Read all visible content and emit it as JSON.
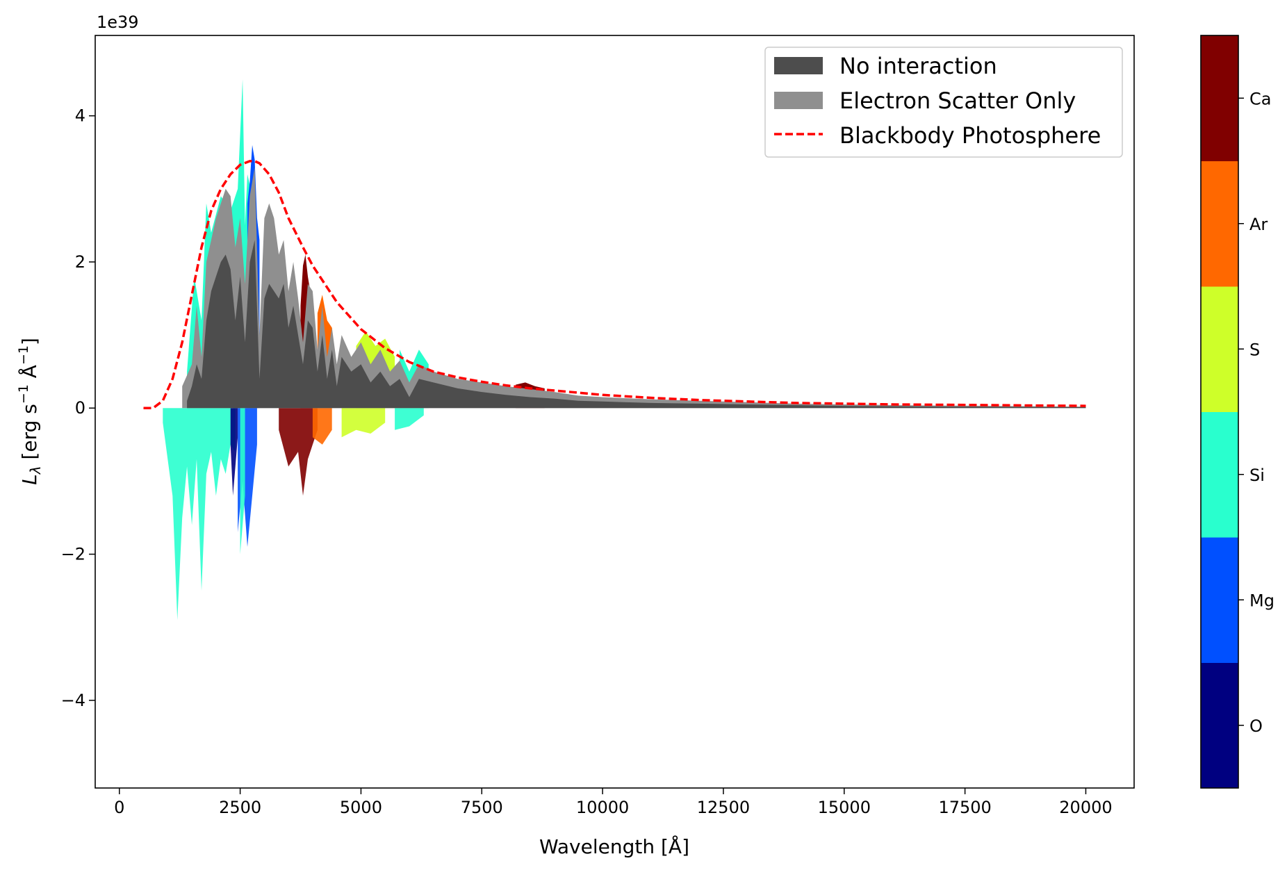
{
  "chart_data": {
    "type": "area",
    "title": "",
    "xlabel": "Wavelength [Å]",
    "ylabel": "L_λ [erg s⁻¹ Å⁻¹]",
    "ylabel_parts": {
      "symbol": "L",
      "subscript": "λ",
      "units": " [erg s",
      "exp1": "−1",
      "units2": " Å",
      "exp2": "−1",
      "close": "]"
    },
    "y_offset_label": "1e39",
    "y_scale": 1e+39,
    "xlim": [
      -500,
      21000
    ],
    "ylim": [
      -5.2,
      5.1
    ],
    "x_ticks": [
      0,
      2500,
      5000,
      7500,
      10000,
      12500,
      15000,
      17500,
      20000
    ],
    "x_tick_labels": [
      "0",
      "2500",
      "5000",
      "7500",
      "10000",
      "12500",
      "15000",
      "17500",
      "20000"
    ],
    "y_ticks": [
      -4,
      -2,
      0,
      2,
      4
    ],
    "y_tick_labels": [
      "−4",
      "−2",
      "0",
      "2",
      "4"
    ],
    "grid": false,
    "legend": {
      "placement": "top-right",
      "entries": [
        {
          "label": "No interaction",
          "style": "patch",
          "color": "#4d4d4d"
        },
        {
          "label": "Electron Scatter Only",
          "style": "patch",
          "color": "#8f8f8f"
        },
        {
          "label": "Blackbody Photosphere",
          "style": "dashed-line",
          "color": "#ff0000"
        }
      ]
    },
    "colorbar": {
      "labels": [
        "O",
        "Mg",
        "Si",
        "S",
        "Ar",
        "Ca"
      ],
      "colors": [
        "#000080",
        "#0050ff",
        "#29ffce",
        "#ceff29",
        "#ff6800",
        "#800000"
      ]
    },
    "blackbody": {
      "x": [
        500,
        700,
        900,
        1100,
        1300,
        1500,
        1700,
        1900,
        2100,
        2300,
        2500,
        2700,
        2800,
        2900,
        3100,
        3300,
        3500,
        3800,
        4000,
        4500,
        5000,
        5500,
        6000,
        6500,
        7000,
        7500,
        8000,
        8500,
        9000,
        10000,
        11000,
        12000,
        13000,
        14000,
        15000,
        16000,
        17000,
        18000,
        19000,
        20000
      ],
      "y": [
        0.0,
        0.0,
        0.1,
        0.4,
        0.9,
        1.55,
        2.2,
        2.7,
        3.0,
        3.2,
        3.33,
        3.38,
        3.38,
        3.35,
        3.2,
        2.95,
        2.6,
        2.2,
        1.95,
        1.45,
        1.08,
        0.82,
        0.63,
        0.5,
        0.42,
        0.36,
        0.31,
        0.27,
        0.24,
        0.18,
        0.14,
        0.11,
        0.09,
        0.07,
        0.06,
        0.05,
        0.045,
        0.04,
        0.035,
        0.03
      ]
    },
    "series": [
      {
        "name": "Electron Scatter Only",
        "color": "#8f8f8f",
        "x": [
          1300,
          1500,
          1600,
          1700,
          1800,
          1900,
          2000,
          2100,
          2200,
          2300,
          2400,
          2500,
          2600,
          2700,
          2800,
          2900,
          3000,
          3100,
          3200,
          3300,
          3400,
          3500,
          3600,
          3700,
          3800,
          3900,
          4000,
          4100,
          4200,
          4300,
          4400,
          4500,
          4600,
          4800,
          5000,
          5200,
          5400,
          5600,
          5800,
          6000,
          6200,
          6500,
          7000,
          7500,
          8000,
          8500,
          9000,
          9500,
          10000,
          11000,
          12000,
          13000,
          14000,
          15000,
          16000,
          17000,
          18000,
          19000,
          20000
        ],
        "y": [
          0.3,
          0.6,
          1.4,
          0.7,
          2.0,
          2.3,
          2.6,
          2.8,
          3.0,
          2.9,
          2.2,
          2.6,
          1.7,
          2.9,
          3.3,
          1.0,
          2.6,
          2.8,
          2.6,
          2.1,
          2.3,
          1.6,
          2.0,
          1.5,
          0.9,
          1.7,
          1.6,
          0.8,
          1.4,
          0.7,
          1.1,
          0.6,
          1.0,
          0.7,
          0.9,
          0.6,
          0.8,
          0.5,
          0.65,
          0.35,
          0.6,
          0.5,
          0.4,
          0.35,
          0.3,
          0.26,
          0.22,
          0.17,
          0.15,
          0.12,
          0.1,
          0.08,
          0.06,
          0.05,
          0.04,
          0.035,
          0.03,
          0.025,
          0.02
        ]
      },
      {
        "name": "No interaction",
        "color": "#4d4d4d",
        "x": [
          1400,
          1500,
          1600,
          1700,
          1800,
          1900,
          2000,
          2100,
          2200,
          2300,
          2400,
          2500,
          2600,
          2700,
          2800,
          2900,
          3000,
          3100,
          3200,
          3300,
          3400,
          3500,
          3600,
          3700,
          3800,
          3900,
          4000,
          4100,
          4200,
          4300,
          4400,
          4500,
          4600,
          4800,
          5000,
          5200,
          5400,
          5600,
          5800,
          6000,
          6200,
          6500,
          7000,
          7500,
          8000,
          8500,
          9000,
          9500,
          10000,
          11000,
          12000,
          13000,
          14000,
          15000,
          16000,
          17000,
          18000,
          19000,
          20000
        ],
        "y": [
          0.1,
          0.3,
          0.6,
          0.4,
          1.2,
          1.6,
          1.8,
          2.0,
          2.1,
          1.9,
          1.2,
          1.8,
          0.9,
          2.0,
          2.3,
          0.4,
          1.5,
          1.7,
          1.6,
          1.5,
          1.7,
          1.1,
          1.4,
          1.0,
          0.6,
          1.2,
          1.1,
          0.5,
          1.0,
          0.4,
          0.8,
          0.3,
          0.7,
          0.5,
          0.6,
          0.35,
          0.5,
          0.3,
          0.4,
          0.15,
          0.4,
          0.35,
          0.27,
          0.22,
          0.18,
          0.15,
          0.13,
          0.1,
          0.09,
          0.07,
          0.06,
          0.05,
          0.04,
          0.03,
          0.025,
          0.02,
          0.018,
          0.015,
          0.012
        ]
      }
    ],
    "element_emission": [
      {
        "element": "Si",
        "x": [
          1400,
          1550,
          1700,
          1800,
          1900,
          2100,
          2300,
          2450,
          2550,
          2600,
          2650,
          2750
        ],
        "y": [
          0.5,
          1.8,
          1.2,
          2.8,
          2.4,
          2.9,
          2.7,
          3.0,
          4.5,
          2.5,
          3.2,
          2.9
        ]
      },
      {
        "element": "Mg",
        "x": [
          2650,
          2700,
          2750,
          2800,
          2850,
          2900
        ],
        "y": [
          2.8,
          3.1,
          3.6,
          3.4,
          2.6,
          2.3
        ]
      },
      {
        "element": "O",
        "x": [
          2350,
          2400,
          2450
        ],
        "y": [
          0.4,
          0.3,
          0.2
        ]
      },
      {
        "element": "Ca",
        "x": [
          3750,
          3800,
          3850,
          3900,
          3950,
          4000
        ],
        "y": [
          1.4,
          1.95,
          2.1,
          1.8,
          1.6,
          1.5
        ]
      },
      {
        "element": "Ar",
        "x": [
          4100,
          4200,
          4300,
          4400
        ],
        "y": [
          1.3,
          1.55,
          1.2,
          1.1
        ]
      },
      {
        "element": "S",
        "x": [
          4900,
          5100,
          5300,
          5500,
          5700
        ],
        "y": [
          0.85,
          1.05,
          0.85,
          0.95,
          0.7
        ]
      },
      {
        "element": "Si",
        "x": [
          5800,
          6000,
          6200,
          6400
        ],
        "y": [
          0.8,
          0.5,
          0.8,
          0.6
        ]
      },
      {
        "element": "Ca",
        "x": [
          8200,
          8400,
          8600,
          8800
        ],
        "y": [
          0.32,
          0.35,
          0.3,
          0.27
        ]
      }
    ],
    "element_absorption": [
      {
        "element": "Si",
        "x": [
          900,
          1100,
          1200,
          1300,
          1400,
          1500,
          1600,
          1700,
          1800,
          1900,
          2000,
          2100,
          2200,
          2300,
          2400
        ],
        "y": [
          -0.2,
          -1.2,
          -2.9,
          -1.5,
          -0.8,
          -1.6,
          -0.7,
          -2.5,
          -0.9,
          -0.6,
          -1.2,
          -0.7,
          -0.9,
          -0.5,
          -0.6
        ]
      },
      {
        "element": "O",
        "x": [
          2300,
          2350,
          2400,
          2450
        ],
        "y": [
          -0.5,
          -1.2,
          -0.8,
          -0.4
        ]
      },
      {
        "element": "Mg",
        "x": [
          2450,
          2550,
          2650,
          2750,
          2850
        ],
        "y": [
          -1.7,
          -1.0,
          -1.9,
          -1.2,
          -0.5
        ]
      },
      {
        "element": "Si",
        "x": [
          2500,
          2550,
          2600
        ],
        "y": [
          -2.0,
          -1.6,
          -1.2
        ]
      },
      {
        "element": "Ca",
        "x": [
          3300,
          3500,
          3700,
          3800,
          3900,
          4000,
          4100
        ],
        "y": [
          -0.3,
          -0.8,
          -0.6,
          -1.2,
          -0.7,
          -0.5,
          -0.3
        ]
      },
      {
        "element": "Ar",
        "x": [
          4000,
          4200,
          4400
        ],
        "y": [
          -0.4,
          -0.5,
          -0.3
        ]
      },
      {
        "element": "S",
        "x": [
          4600,
          4900,
          5200,
          5500
        ],
        "y": [
          -0.4,
          -0.3,
          -0.35,
          -0.2
        ]
      },
      {
        "element": "Si",
        "x": [
          5700,
          6000,
          6300
        ],
        "y": [
          -0.3,
          -0.25,
          -0.1
        ]
      }
    ]
  }
}
